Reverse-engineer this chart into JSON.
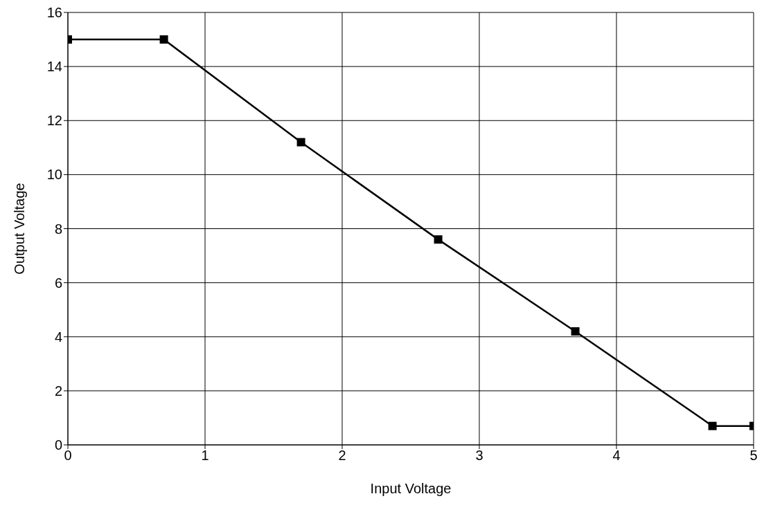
{
  "chart_data": {
    "type": "line",
    "xlabel": "Input Voltage",
    "ylabel": "Output Voltage",
    "x": [
      0,
      0.7,
      1.7,
      2.7,
      3.7,
      4.7,
      5
    ],
    "series": [
      {
        "color": "#000000",
        "values": [
          15,
          15,
          11.2,
          7.6,
          4.2,
          0.7,
          0.7
        ]
      }
    ],
    "xlim": [
      0,
      5
    ],
    "xticks": [
      0,
      1,
      2,
      3,
      4,
      5
    ],
    "ylim": [
      0,
      16
    ],
    "yticks": [
      0,
      2,
      4,
      6,
      8,
      10,
      12,
      14,
      16
    ],
    "grid": true,
    "marker": "square",
    "line_style": "solid"
  }
}
